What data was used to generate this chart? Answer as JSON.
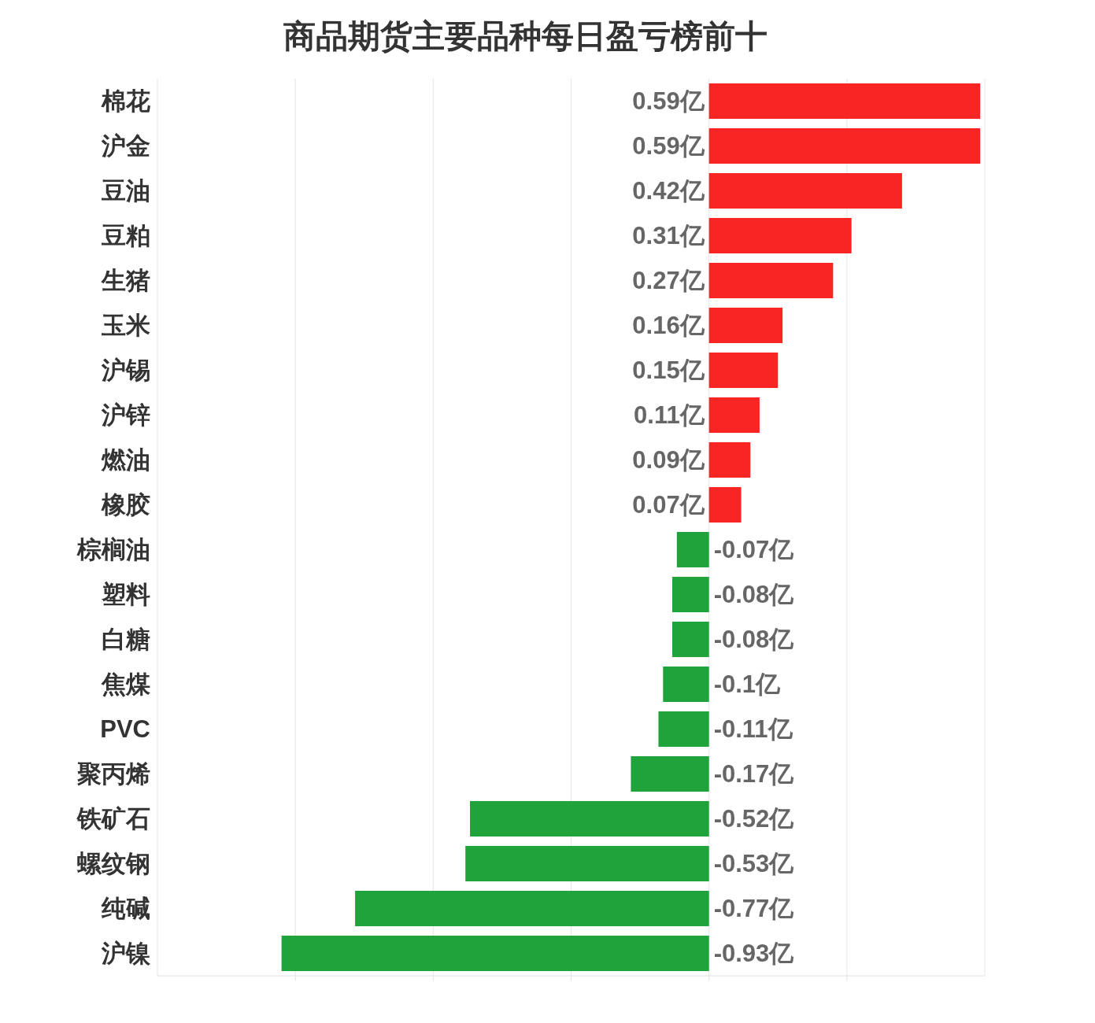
{
  "chart_data": {
    "type": "bar",
    "orientation": "horizontal",
    "title": "商品期货主要品种每日盈亏榜前十",
    "categories": [
      "棉花",
      "沪金",
      "豆油",
      "豆粕",
      "生猪",
      "玉米",
      "沪锡",
      "沪锌",
      "燃油",
      "橡胶",
      "棕榈油",
      "塑料",
      "白糖",
      "焦煤",
      "PVC",
      "聚丙烯",
      "铁矿石",
      "螺纹钢",
      "纯碱",
      "沪镍"
    ],
    "values": [
      0.59,
      0.59,
      0.42,
      0.31,
      0.27,
      0.16,
      0.15,
      0.11,
      0.09,
      0.07,
      -0.07,
      -0.08,
      -0.08,
      -0.1,
      -0.11,
      -0.17,
      -0.52,
      -0.53,
      -0.77,
      -0.93
    ],
    "colors": [
      "#f92424",
      "#f92424",
      "#f92424",
      "#f92424",
      "#f92424",
      "#f92424",
      "#f92424",
      "#f92424",
      "#f92424",
      "#f92424",
      "#21a33b",
      "#21a33b",
      "#21a33b",
      "#21a33b",
      "#21a33b",
      "#21a33b",
      "#21a33b",
      "#21a33b",
      "#21a33b",
      "#21a33b"
    ],
    "value_labels": [
      "0.59亿",
      "0.59亿",
      "0.42亿",
      "0.31亿",
      "0.27亿",
      "0.16亿",
      "0.15亿",
      "0.11亿",
      "0.09亿",
      "0.07亿",
      "-0.07亿",
      "-0.08亿",
      "-0.08亿",
      "-0.1亿",
      "-0.11亿",
      "-0.17亿",
      "-0.52亿",
      "-0.53亿",
      "-0.77亿",
      "-0.93亿"
    ],
    "xlim": [
      -1.2,
      0.6
    ],
    "xticks": [
      {
        "value": -0.9,
        "label": null
      },
      {
        "value": -0.6,
        "label": null
      },
      {
        "value": -0.3,
        "label": null
      },
      {
        "value": 0,
        "label": null
      },
      {
        "value": 0.3,
        "label": null
      }
    ],
    "grid": "x",
    "tick_labels": "y"
  }
}
